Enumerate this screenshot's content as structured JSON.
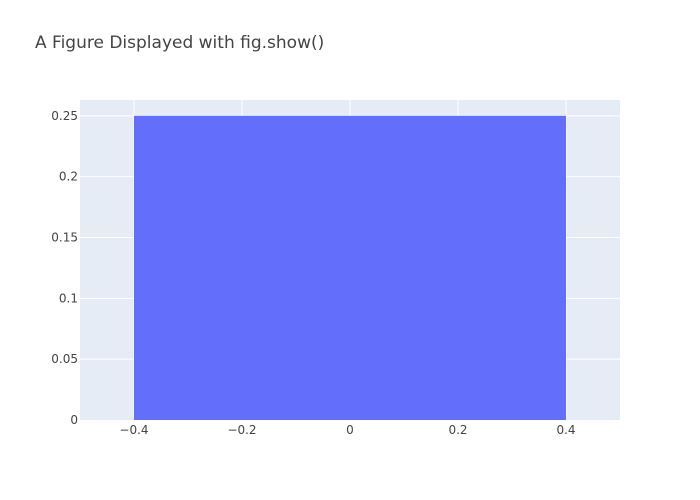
{
  "title": "A Figure Displayed with fig.show()",
  "colors": {
    "plot_bg": "#E5ECF6",
    "bar": "#636EFA",
    "grid": "#FFFFFF",
    "text": "#444444"
  },
  "chart_data": {
    "type": "bar",
    "title": "A Figure Displayed with fig.show()",
    "xlabel": "",
    "ylabel": "",
    "xlim": [
      -0.5,
      0.5
    ],
    "ylim": [
      0,
      0.263
    ],
    "bars": [
      {
        "x0": -0.4,
        "x1": 0.4,
        "value": 0.25
      }
    ],
    "xticks": [
      {
        "value": -0.4,
        "label": "−0.4"
      },
      {
        "value": -0.2,
        "label": "−0.2"
      },
      {
        "value": 0,
        "label": "0"
      },
      {
        "value": 0.2,
        "label": "0.2"
      },
      {
        "value": 0.4,
        "label": "0.4"
      }
    ],
    "yticks": [
      {
        "value": 0,
        "label": "0"
      },
      {
        "value": 0.05,
        "label": "0.05"
      },
      {
        "value": 0.1,
        "label": "0.1"
      },
      {
        "value": 0.15,
        "label": "0.15"
      },
      {
        "value": 0.2,
        "label": "0.2"
      },
      {
        "value": 0.25,
        "label": "0.25"
      }
    ],
    "grid": true,
    "legend": "none"
  }
}
